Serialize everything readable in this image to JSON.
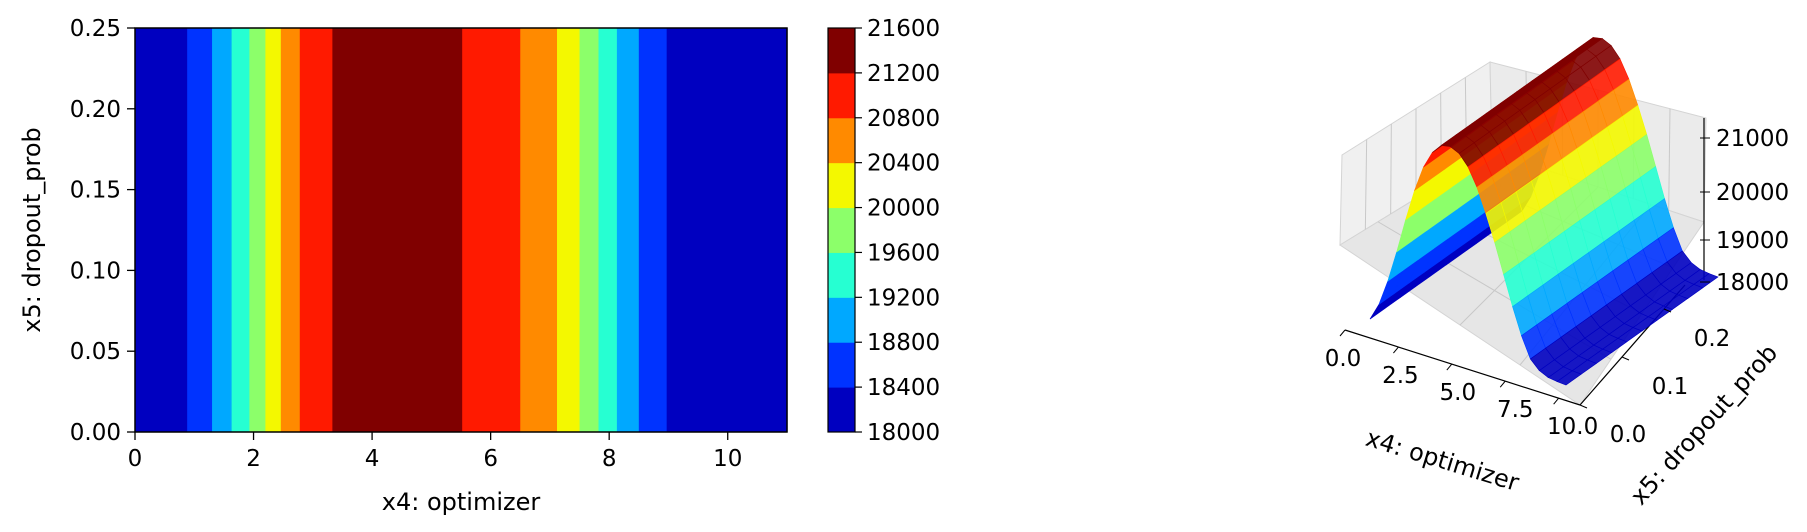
{
  "chart_data": [
    {
      "type": "contourf",
      "xlabel": "x4: optimizer",
      "ylabel": "x5: dropout_prob",
      "xlim": [
        0,
        11
      ],
      "ylim": [
        0,
        0.25
      ],
      "xticks": [
        "0",
        "2",
        "4",
        "6",
        "8",
        "10"
      ],
      "xtick_values": [
        0,
        2,
        4,
        6,
        8,
        10
      ],
      "yticks": [
        "0.00",
        "0.05",
        "0.10",
        "0.15",
        "0.20",
        "0.25"
      ],
      "ytick_values": [
        0,
        0.05,
        0.1,
        0.15,
        0.2,
        0.25
      ],
      "levels": [
        18000,
        18400,
        18800,
        19200,
        19600,
        20000,
        20400,
        20800,
        21200,
        21600
      ],
      "level_colors": [
        "#0000c0",
        "#0033ff",
        "#00a8ff",
        "#26ffd2",
        "#8cff6a",
        "#f4f800",
        "#ff8a00",
        "#ff1a00",
        "#800000"
      ],
      "bands": [
        {
          "x0": 0.0,
          "x1": 0.88,
          "level_index": 0
        },
        {
          "x0": 0.88,
          "x1": 1.3,
          "level_index": 1
        },
        {
          "x0": 1.3,
          "x1": 1.63,
          "level_index": 2
        },
        {
          "x0": 1.63,
          "x1": 1.93,
          "level_index": 3
        },
        {
          "x0": 1.93,
          "x1": 2.2,
          "level_index": 4
        },
        {
          "x0": 2.2,
          "x1": 2.46,
          "level_index": 5
        },
        {
          "x0": 2.46,
          "x1": 2.78,
          "level_index": 6
        },
        {
          "x0": 2.78,
          "x1": 3.33,
          "level_index": 7
        },
        {
          "x0": 3.33,
          "x1": 5.52,
          "level_index": 8
        },
        {
          "x0": 5.52,
          "x1": 6.5,
          "level_index": 7
        },
        {
          "x0": 6.5,
          "x1": 7.12,
          "level_index": 6
        },
        {
          "x0": 7.12,
          "x1": 7.5,
          "level_index": 5
        },
        {
          "x0": 7.5,
          "x1": 7.82,
          "level_index": 4
        },
        {
          "x0": 7.82,
          "x1": 8.13,
          "level_index": 3
        },
        {
          "x0": 8.13,
          "x1": 8.5,
          "level_index": 2
        },
        {
          "x0": 8.5,
          "x1": 8.97,
          "level_index": 1
        },
        {
          "x0": 8.97,
          "x1": 11.0,
          "level_index": 0
        }
      ],
      "colorbar_ticks": [
        "21600",
        "21200",
        "20800",
        "20400",
        "20000",
        "19600",
        "19200",
        "18800",
        "18400",
        "18000"
      ]
    },
    {
      "type": "surface3d",
      "xlabel": "x4: optimizer",
      "ylabel": "x5: dropout_prob",
      "xticks": [
        "0.0",
        "2.5",
        "5.0",
        "7.5",
        "10.0"
      ],
      "yticks": [
        "0.0",
        "0.1",
        "0.2"
      ],
      "zticks": [
        "21000",
        "20000",
        "19000",
        "18000"
      ],
      "zlim": [
        18000,
        21600
      ],
      "profile_x": [
        0,
        0.5,
        1,
        1.5,
        2,
        2.5,
        3,
        3.5,
        4,
        4.5,
        5,
        5.5,
        6,
        6.5,
        7,
        7.5,
        8,
        8.5,
        9,
        9.5,
        10,
        10.5,
        11
      ],
      "profile_z": [
        18050,
        18350,
        18800,
        19350,
        19950,
        20500,
        20950,
        21250,
        21420,
        21450,
        21380,
        21200,
        20900,
        20500,
        20050,
        19550,
        19050,
        18600,
        18250,
        18100,
        18030,
        18010,
        18000
      ]
    }
  ]
}
